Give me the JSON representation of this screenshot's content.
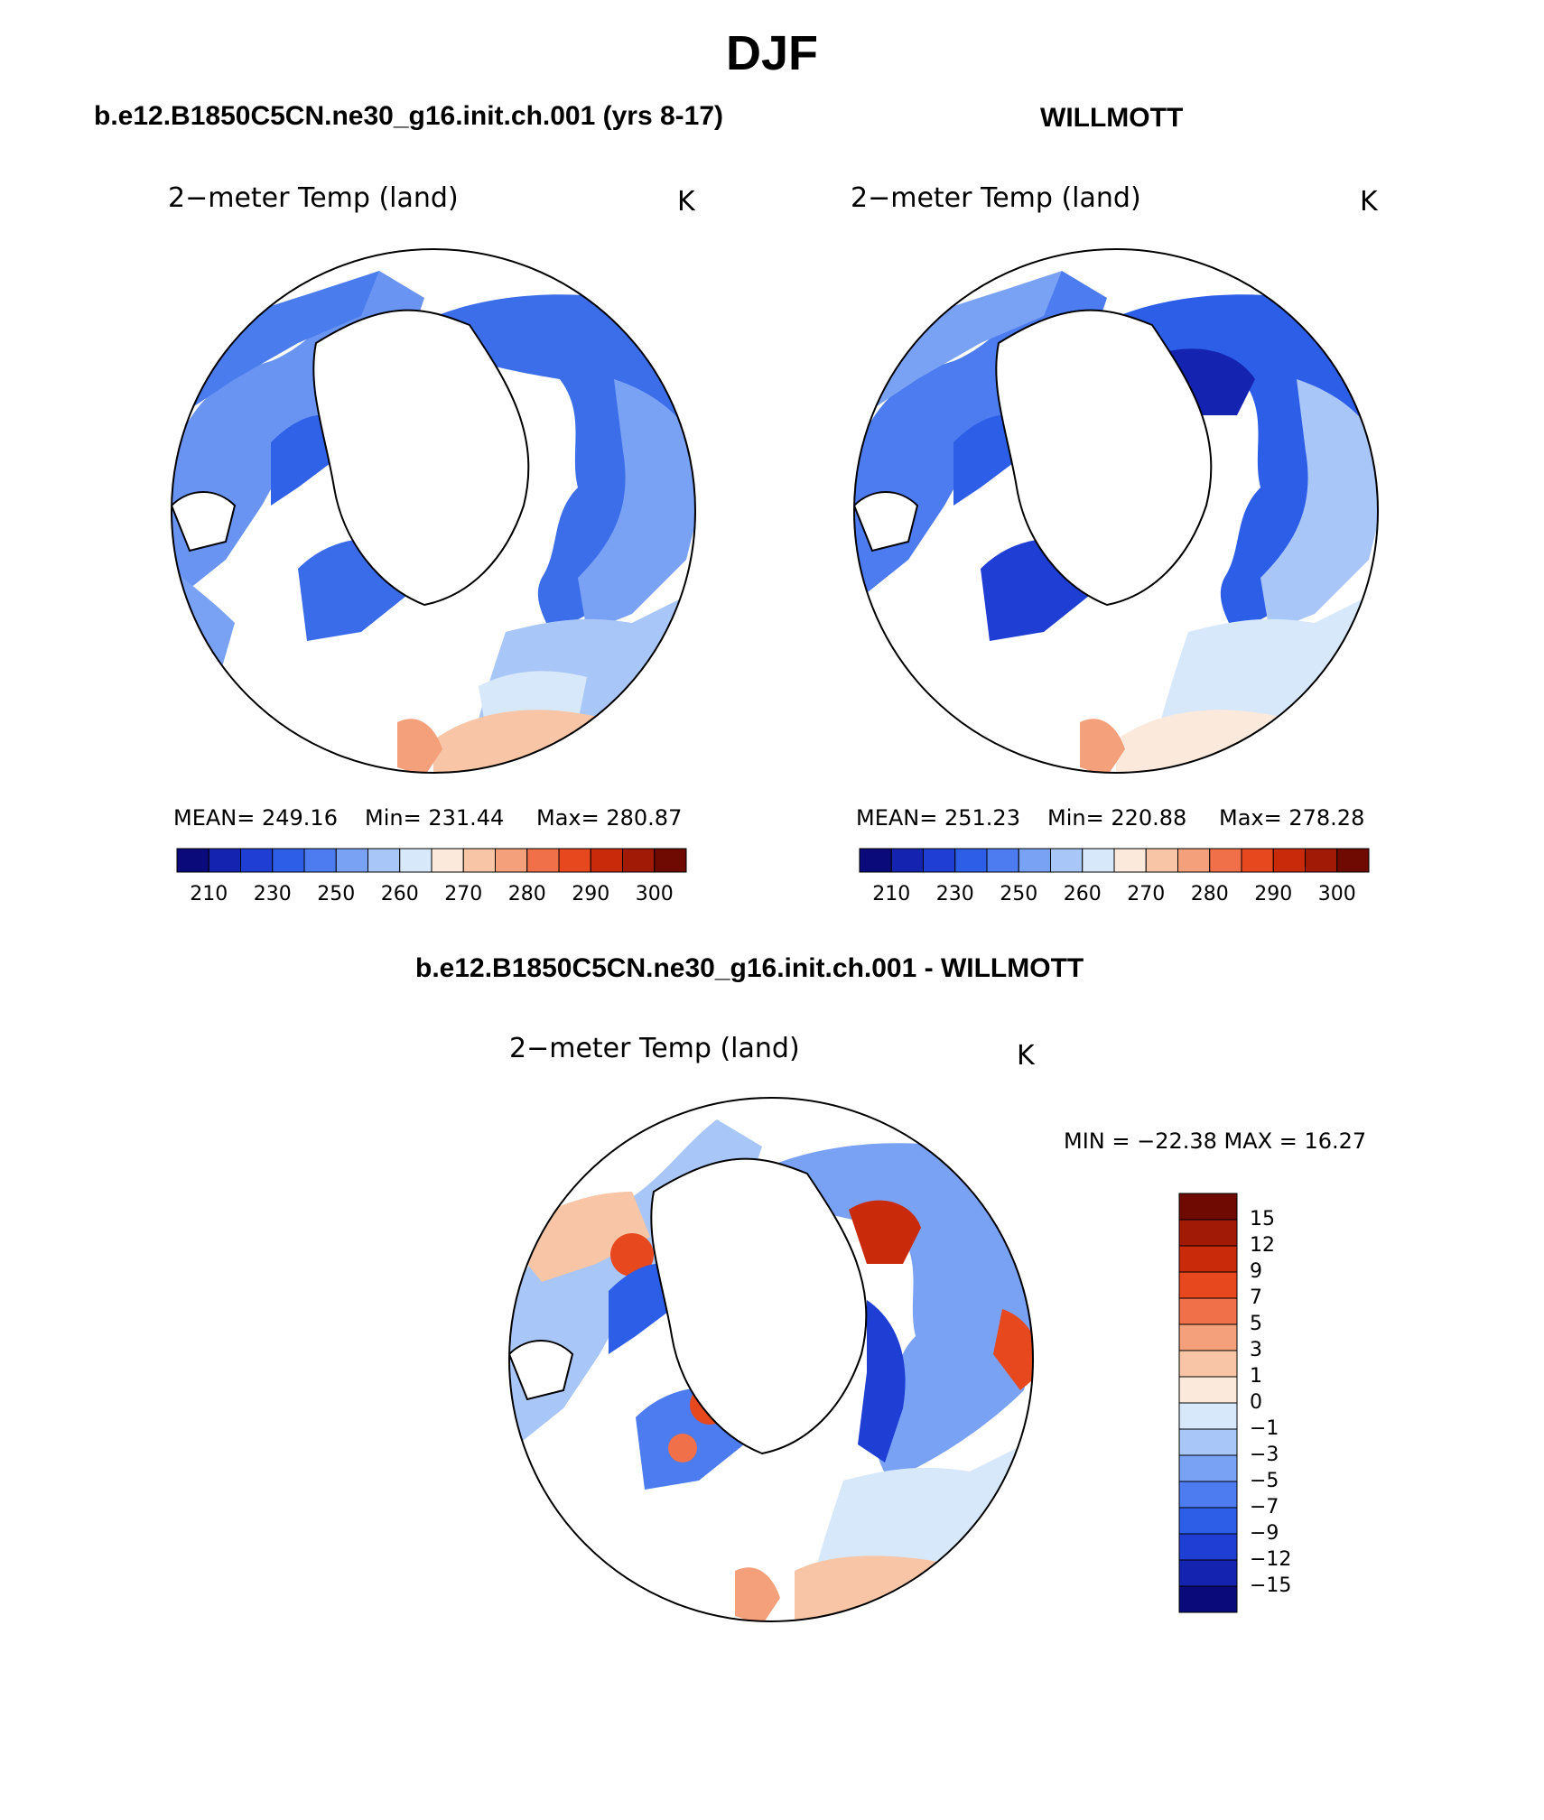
{
  "title": "DJF",
  "panels": {
    "model": {
      "run_title": "b.e12.B1850C5CN.ne30_g16.init.ch.001 (yrs 8-17)",
      "variable": "2−meter Temp (land)",
      "units": "K",
      "stats": {
        "mean": "MEAN= 249.16",
        "min": "Min= 231.44",
        "max": "Max= 280.87"
      }
    },
    "obs": {
      "run_title": "WILLMOTT",
      "variable": "2−meter Temp (land)",
      "units": "K",
      "stats": {
        "mean": "MEAN= 251.23",
        "min": "Min= 220.88",
        "max": "Max= 278.28"
      }
    },
    "diff": {
      "run_title": "b.e12.B1850C5CN.ne30_g16.init.ch.001 - WILLMOTT",
      "variable": "2−meter Temp (land)",
      "units": "K",
      "minmax": "MIN = −22.38 MAX =   16.27"
    }
  },
  "colorbars": {
    "absolute": {
      "colors": [
        "#0a0a7a",
        "#1424b0",
        "#1e3ed4",
        "#2c5ee8",
        "#4c7cf0",
        "#7aa2f4",
        "#a9c6f8",
        "#d8e8fb",
        "#fbe9dc",
        "#f8c6a6",
        "#f4a07a",
        "#f0704a",
        "#e8481e",
        "#c82a0a",
        "#a01a06",
        "#6e0a02"
      ],
      "tick_labels": [
        "210",
        "230",
        "250",
        "260",
        "270",
        "280",
        "290",
        "300"
      ]
    },
    "difference": {
      "colors": [
        "#0a0a7a",
        "#1424b0",
        "#1e3ed4",
        "#2c5ee8",
        "#4c7cf0",
        "#7aa2f4",
        "#a9c6f8",
        "#d8e8fb",
        "#fbe9dc",
        "#f8c6a6",
        "#f4a07a",
        "#f0704a",
        "#e8481e",
        "#c82a0a",
        "#a01a06",
        "#6e0a02"
      ],
      "tick_labels": [
        "15",
        "12",
        "9",
        "7",
        "5",
        "3",
        "1",
        "0",
        "−1",
        "−3",
        "−5",
        "−7",
        "−9",
        "−12",
        "−15"
      ]
    }
  },
  "chart_data": [
    {
      "type": "heatmap",
      "title": "2−meter Temp (land)",
      "subtitle": "b.e12.B1850C5CN.ne30_g16.init.ch.001 (yrs 8-17)",
      "units": "K",
      "projection": "north polar stereographic",
      "mean": 249.16,
      "min": 231.44,
      "max": 280.87,
      "contour_levels": [
        210,
        215,
        220,
        225,
        230,
        235,
        240,
        245,
        250,
        255,
        260,
        265,
        270,
        275,
        280,
        285,
        290,
        295,
        300
      ]
    },
    {
      "type": "heatmap",
      "title": "2−meter Temp (land)",
      "subtitle": "WILLMOTT",
      "units": "K",
      "projection": "north polar stereographic",
      "mean": 251.23,
      "min": 220.88,
      "max": 278.28,
      "contour_levels": [
        210,
        215,
        220,
        225,
        230,
        235,
        240,
        245,
        250,
        255,
        260,
        265,
        270,
        275,
        280,
        285,
        290,
        295,
        300
      ]
    },
    {
      "type": "heatmap",
      "title": "2−meter Temp (land)",
      "subtitle": "b.e12.B1850C5CN.ne30_g16.init.ch.001 - WILLMOTT",
      "units": "K",
      "projection": "north polar stereographic",
      "min": -22.38,
      "max": 16.27,
      "contour_levels": [
        -15,
        -12,
        -9,
        -7,
        -5,
        -3,
        -1,
        0,
        1,
        3,
        5,
        7,
        9,
        12,
        15
      ]
    }
  ]
}
